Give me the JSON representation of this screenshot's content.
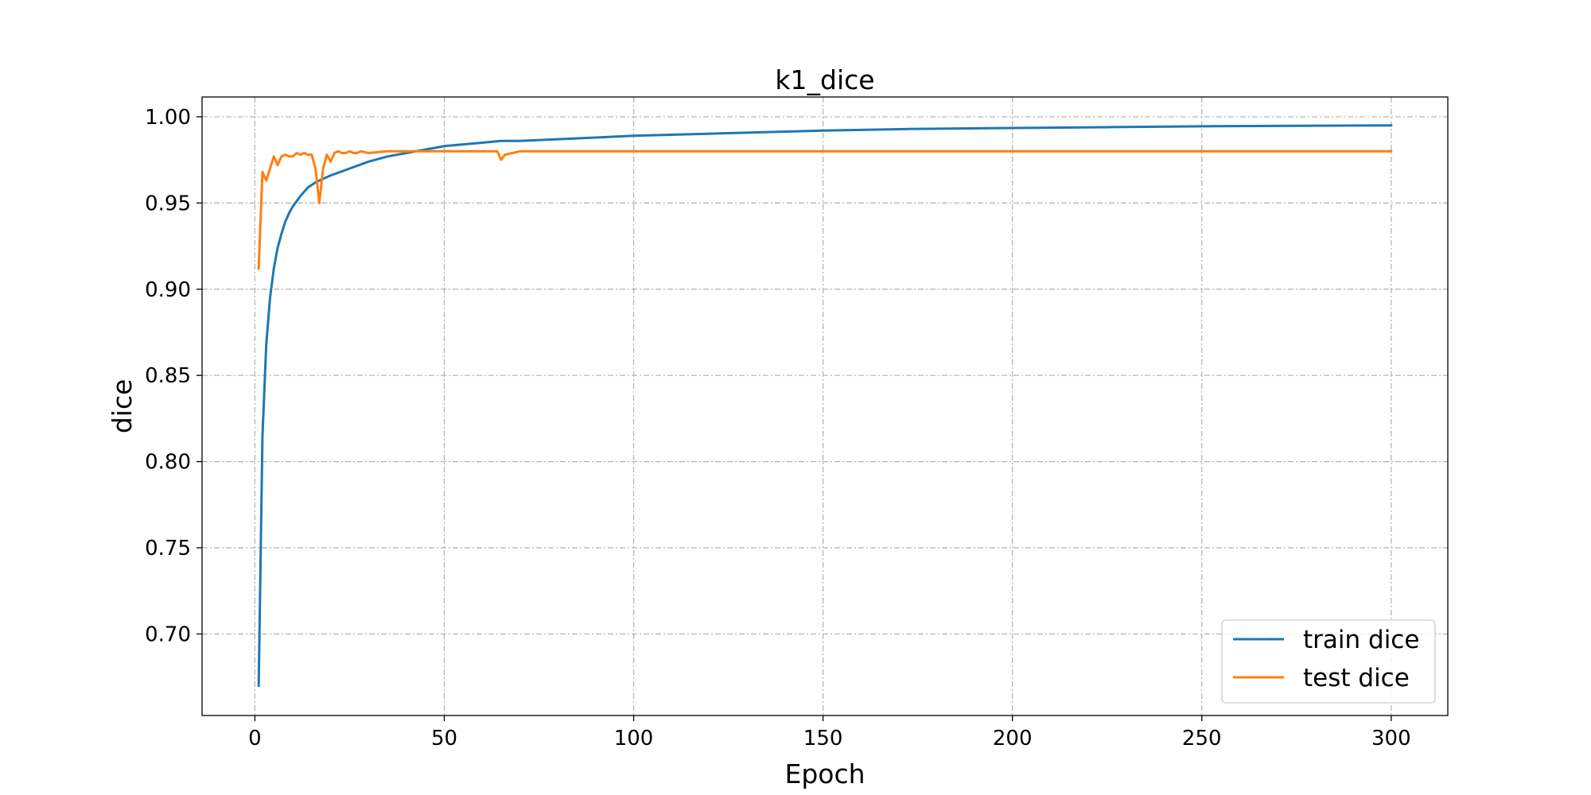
{
  "chart_data": {
    "type": "line",
    "title": "k1_dice",
    "xlabel": "Epoch",
    "ylabel": "dice",
    "xlim": [
      -13.95,
      314.95
    ],
    "ylim": [
      0.6527,
      1.0115
    ],
    "xticks": [
      0,
      50,
      100,
      150,
      200,
      250,
      300
    ],
    "xtick_labels": [
      "0",
      "50",
      "100",
      "150",
      "200",
      "250",
      "300"
    ],
    "yticks": [
      0.7,
      0.75,
      0.8,
      0.85,
      0.9,
      0.95,
      1.0
    ],
    "ytick_labels": [
      "0.70",
      "0.75",
      "0.80",
      "0.85",
      "0.90",
      "0.95",
      "1.00"
    ],
    "grid": true,
    "legend_position": "lower-right",
    "series": [
      {
        "name": "train dice",
        "color": "#1f77b4",
        "x": [
          1,
          2,
          3,
          4,
          5,
          6,
          7,
          8,
          9,
          10,
          12,
          14,
          16,
          18,
          20,
          25,
          30,
          35,
          40,
          45,
          50,
          55,
          60,
          65,
          70,
          80,
          90,
          100,
          125,
          150,
          175,
          200,
          225,
          250,
          275,
          300
        ],
        "y": [
          0.67,
          0.815,
          0.868,
          0.895,
          0.912,
          0.924,
          0.932,
          0.939,
          0.944,
          0.948,
          0.954,
          0.959,
          0.962,
          0.964,
          0.966,
          0.97,
          0.974,
          0.977,
          0.979,
          0.981,
          0.983,
          0.984,
          0.985,
          0.986,
          0.986,
          0.987,
          0.988,
          0.989,
          0.9905,
          0.992,
          0.993,
          0.9935,
          0.994,
          0.9945,
          0.9948,
          0.995
        ]
      },
      {
        "name": "test dice",
        "color": "#ff7f0e",
        "x": [
          1,
          2,
          3,
          4,
          5,
          6,
          7,
          8,
          9,
          10,
          11,
          12,
          13,
          14,
          15,
          16,
          17,
          18,
          19,
          20,
          21,
          22,
          23,
          24,
          25,
          26,
          27,
          28,
          30,
          35,
          40,
          45,
          50,
          55,
          60,
          62,
          64,
          65,
          66,
          68,
          70,
          75,
          80,
          90,
          100,
          150,
          200,
          250,
          300
        ],
        "y": [
          0.912,
          0.968,
          0.963,
          0.97,
          0.977,
          0.972,
          0.977,
          0.978,
          0.977,
          0.977,
          0.979,
          0.978,
          0.979,
          0.978,
          0.978,
          0.97,
          0.95,
          0.97,
          0.978,
          0.974,
          0.979,
          0.98,
          0.979,
          0.979,
          0.98,
          0.979,
          0.979,
          0.98,
          0.979,
          0.98,
          0.98,
          0.98,
          0.98,
          0.98,
          0.98,
          0.98,
          0.98,
          0.975,
          0.978,
          0.979,
          0.98,
          0.98,
          0.98,
          0.98,
          0.98,
          0.98,
          0.98,
          0.98,
          0.98
        ]
      }
    ]
  }
}
